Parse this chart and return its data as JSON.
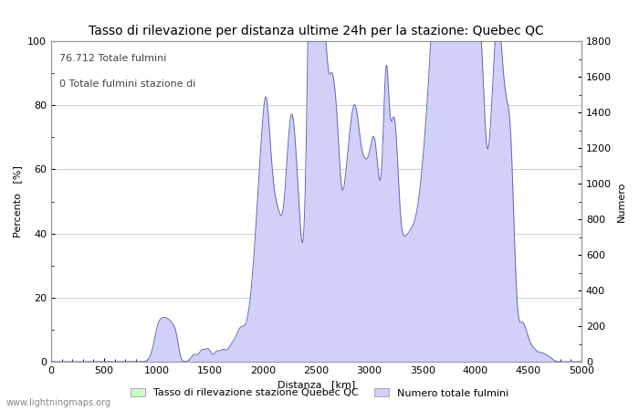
{
  "title": "Tasso di rilevazione per distanza ultime 24h per la stazione: Quebec QC",
  "xlabel": "Distanza   [km]",
  "ylabel_left": "Percento   [%]",
  "ylabel_right": "Numero",
  "annotation_line1": "76.712 Totale fulmini",
  "annotation_line2": "0 Totale fulmini stazione di",
  "xlim": [
    0,
    5000
  ],
  "ylim_left": [
    0,
    100
  ],
  "ylim_right": [
    0,
    1800
  ],
  "xticks": [
    0,
    500,
    1000,
    1500,
    2000,
    2500,
    3000,
    3500,
    4000,
    4500,
    5000
  ],
  "yticks_left": [
    0,
    20,
    40,
    60,
    80,
    100
  ],
  "yticks_right": [
    0,
    200,
    400,
    600,
    800,
    1000,
    1200,
    1400,
    1600,
    1800
  ],
  "legend_label1": "Tasso di rilevazione stazione Quebec QC",
  "legend_label2": "Numero totale fulmini",
  "fill_color_blue": "#d0d0f8",
  "fill_color_green": "#c8ffc8",
  "line_color": "#6666bb",
  "background_color": "#ffffff",
  "grid_color": "#bbbbbb",
  "watermark": "www.lightningmaps.org",
  "title_fontsize": 10,
  "axis_fontsize": 8,
  "tick_fontsize": 8
}
